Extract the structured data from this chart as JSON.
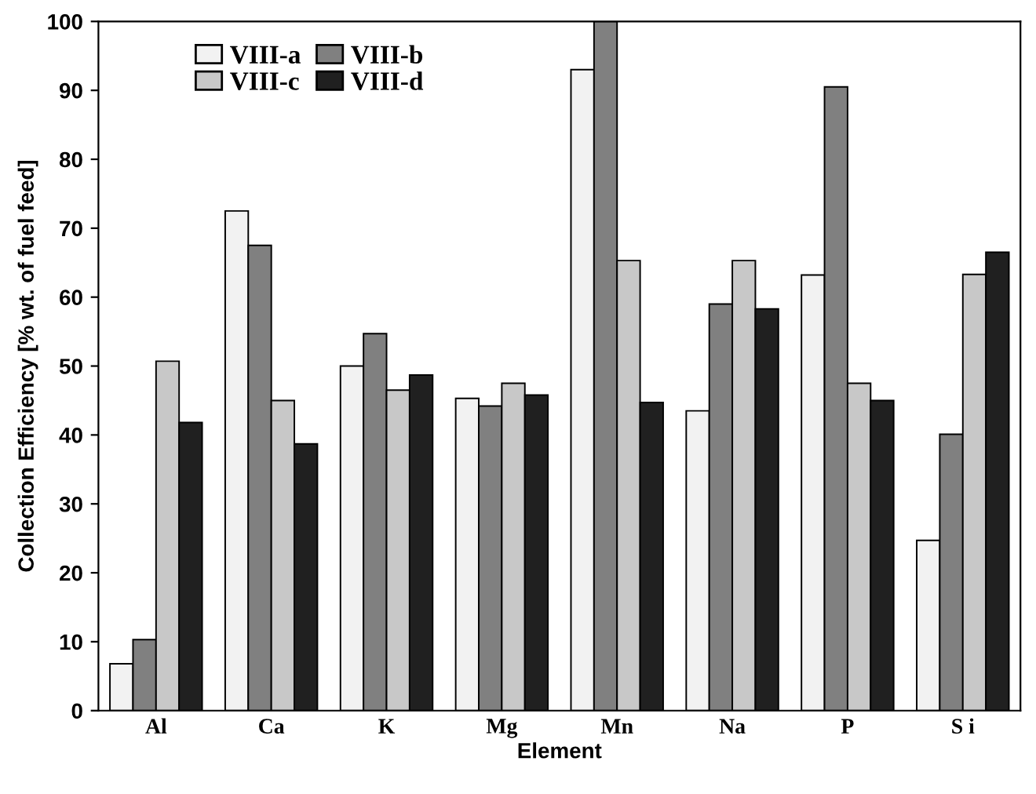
{
  "chart_data": {
    "type": "bar",
    "xlabel": "Element",
    "ylabel": "Collection Efficiency [% wt. of fuel feed]",
    "categories": [
      "Al",
      "Ca",
      "K",
      "Mg",
      "Mn",
      "Na",
      "P",
      "S i"
    ],
    "series": [
      {
        "name": "VIII-a",
        "color": "#f2f2f2",
        "values": [
          6.8,
          72.5,
          50,
          45.3,
          93,
          43.5,
          63.2,
          24.7
        ]
      },
      {
        "name": "VIII-b",
        "color": "#808080",
        "values": [
          10.3,
          67.5,
          54.7,
          44.2,
          100,
          59,
          90.5,
          40.1
        ]
      },
      {
        "name": "VIII-c",
        "color": "#c8c8c8",
        "values": [
          50.7,
          45,
          46.5,
          47.5,
          65.3,
          65.3,
          47.5,
          63.3
        ]
      },
      {
        "name": "VIII-d",
        "color": "#202020",
        "values": [
          41.8,
          38.7,
          48.7,
          45.8,
          44.7,
          58.3,
          45,
          66.5
        ]
      }
    ],
    "ylim": [
      0,
      100
    ],
    "yticks": [
      0,
      10,
      20,
      30,
      40,
      50,
      60,
      70,
      80,
      90,
      100
    ],
    "legend": "top left"
  }
}
